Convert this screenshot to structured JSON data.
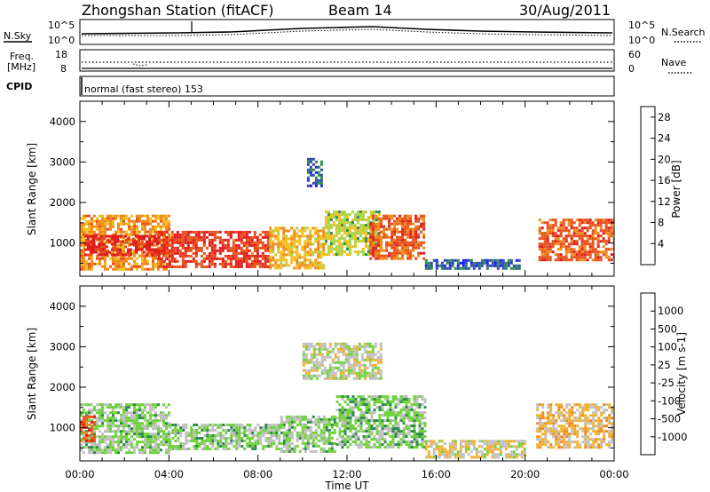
{
  "header": {
    "station": "Zhongshan Station (fitACF)",
    "beam": "Beam 14",
    "date": "30/Aug/2011"
  },
  "strip_panels": {
    "nsky_label": "N.Sky",
    "nsearch_label": "N.Search",
    "noise_ticks": [
      "10^5",
      "10^0"
    ],
    "freq_label": "Freq.",
    "freq_unit": "[MHz]",
    "freq_ticks": [
      "18",
      "8"
    ],
    "nave_label": "Nave",
    "nave_ticks": [
      "60",
      "0"
    ],
    "cpid_label": "CPID",
    "cpid_value": "normal (fast stereo) 153"
  },
  "colors": {
    "power_scale": [
      "#1a1aff",
      "#2f4fa8",
      "#2e8a4e",
      "#a8d44a",
      "#f0c020",
      "#f08a1a",
      "#e8501a",
      "#e01e1e"
    ],
    "velocity_scale": [
      "#e01e1e",
      "#f05a1a",
      "#f08a1a",
      "#f0b030",
      "#c0c0c0",
      "#6fd23a",
      "#2e8a4e",
      "#2f6fa8",
      "#1f3aa0"
    ]
  },
  "chart_data": [
    {
      "type": "heatmap",
      "title": "Power",
      "xlabel": "Time UT",
      "ylabel": "Slant Range [km]",
      "x_ticks": [
        "00:00",
        "04:00",
        "08:00",
        "12:00",
        "16:00",
        "20:00",
        "00:00"
      ],
      "xlim_hours": [
        0,
        24
      ],
      "y_ticks": [
        "1000",
        "2000",
        "3000",
        "4000"
      ],
      "ylim": [
        180,
        4500
      ],
      "colorbar": {
        "label": "Power [dB]",
        "ticks": [
          "4",
          "8",
          "12",
          "16",
          "20",
          "24",
          "28"
        ],
        "range": [
          0,
          30
        ]
      },
      "regions": [
        {
          "t": [
            0.0,
            4.0
          ],
          "r": [
            350,
            1700
          ],
          "value": 20
        },
        {
          "t": [
            0.2,
            3.5
          ],
          "r": [
            700,
            1200
          ],
          "value": 28
        },
        {
          "t": [
            3.5,
            8.5
          ],
          "r": [
            420,
            1300
          ],
          "value": 26
        },
        {
          "t": [
            8.5,
            11.0
          ],
          "r": [
            380,
            1400
          ],
          "value": 18
        },
        {
          "t": [
            10.2,
            10.8
          ],
          "r": [
            2400,
            3100
          ],
          "value": 6
        },
        {
          "t": [
            11.0,
            13.5
          ],
          "r": [
            700,
            1800
          ],
          "value": 14
        },
        {
          "t": [
            13.0,
            15.5
          ],
          "r": [
            600,
            1700
          ],
          "value": 24
        },
        {
          "t": [
            15.5,
            19.8
          ],
          "r": [
            350,
            600
          ],
          "value": 6
        },
        {
          "t": [
            20.6,
            24.0
          ],
          "r": [
            600,
            1600
          ],
          "value": 24
        }
      ]
    },
    {
      "type": "heatmap",
      "title": "Velocity",
      "xlabel": "Time UT",
      "ylabel": "Slant Range [km]",
      "x_ticks": [
        "00:00",
        "04:00",
        "08:00",
        "12:00",
        "16:00",
        "20:00",
        "00:00"
      ],
      "xlim_hours": [
        0,
        24
      ],
      "y_ticks": [
        "1000",
        "2000",
        "3000",
        "4000"
      ],
      "ylim": [
        180,
        4500
      ],
      "colorbar": {
        "label": "Velocity [m s-1]",
        "ticks": [
          "1000",
          "500",
          "100",
          "25",
          "-25",
          "-100",
          "-500",
          "-1000"
        ],
        "range": [
          -1000,
          1000
        ]
      },
      "regions": [
        {
          "t": [
            0.0,
            4.0
          ],
          "r": [
            400,
            1600
          ],
          "value": -150
        },
        {
          "t": [
            0.0,
            0.7
          ],
          "r": [
            700,
            1300
          ],
          "value": 700
        },
        {
          "t": [
            4.0,
            9.0
          ],
          "r": [
            450,
            1100
          ],
          "value": -150
        },
        {
          "t": [
            9.0,
            11.5
          ],
          "r": [
            400,
            1300
          ],
          "value": -150
        },
        {
          "t": [
            10.0,
            13.5
          ],
          "r": [
            2200,
            3100
          ],
          "value": 0
        },
        {
          "t": [
            11.5,
            15.5
          ],
          "r": [
            500,
            1800
          ],
          "value": -200
        },
        {
          "t": [
            15.5,
            20.0
          ],
          "r": [
            300,
            700
          ],
          "value": 50
        },
        {
          "t": [
            20.5,
            24.0
          ],
          "r": [
            500,
            1600
          ],
          "value": 200
        }
      ]
    }
  ]
}
